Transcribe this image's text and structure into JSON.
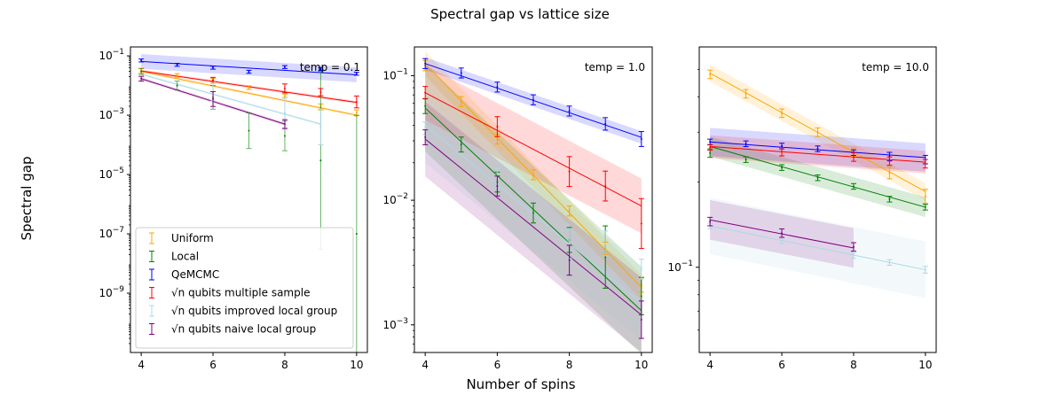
{
  "figure": {
    "title": "Spectral gap vs lattice size",
    "ylabel": "Spectral gap",
    "xlabel": "Number of spins"
  },
  "series_styles": [
    {
      "name": "Uniform",
      "color": "#ffa500"
    },
    {
      "name": "Local",
      "color": "#008000"
    },
    {
      "name": "QeMCMC",
      "color": "#0000ff"
    },
    {
      "name": "√n qubits multiple sample",
      "color": "#ff0000"
    },
    {
      "name": "√n qubits improved local group",
      "color": "#add8e6"
    },
    {
      "name": "√n qubits naive local group",
      "color": "#800080"
    }
  ],
  "chart_data": [
    {
      "type": "line",
      "title": "temp = 0.1",
      "xlabel": "",
      "ylabel": "",
      "yscale": "log",
      "xlim": [
        3.7,
        10.3
      ],
      "ylim": [
        1e-11,
        0.2
      ],
      "xticks": [
        4,
        6,
        8,
        10
      ],
      "yticks": [
        1e-09,
        1e-07,
        1e-05,
        0.001,
        0.1
      ],
      "ytick_labels": [
        "10^-9",
        "10^-7",
        "10^-5",
        "10^-3",
        "10^-1"
      ],
      "legend": "lower-left",
      "series": [
        {
          "name": "Uniform",
          "x": [
            4,
            5,
            6,
            7,
            8,
            9,
            10
          ],
          "y": [
            0.031,
            0.022,
            0.015,
            0.0085,
            0.0045,
            0.0019,
            0.0012
          ],
          "err": [
            0.08,
            0.06,
            0.06,
            0.06,
            0.06,
            0.1,
            0.1
          ],
          "fit": [
            [
              4,
              0.03
            ],
            [
              10,
              0.001
            ]
          ],
          "band": 0.05
        },
        {
          "name": "Local",
          "x": [
            4,
            5,
            6,
            7,
            8,
            9,
            10
          ],
          "y": [
            0.03,
            0.01,
            0.004,
            0.0003,
            0.0002,
            3e-05,
            1e-07
          ],
          "err": [
            0.1,
            0.15,
            0.4,
            0.6,
            0.5,
            3,
            4
          ],
          "fit": null,
          "band": null
        },
        {
          "name": "QeMCMC",
          "x": [
            4,
            5,
            6,
            7,
            8,
            9,
            10
          ],
          "y": [
            0.07,
            0.05,
            0.04,
            0.029,
            0.042,
            0.036,
            0.025
          ],
          "err": [
            0.05,
            0.05,
            0.05,
            0.05,
            0.05,
            0.05,
            0.05
          ],
          "fit": [
            [
              4,
              0.065
            ],
            [
              10,
              0.023
            ]
          ],
          "band": 0.25
        },
        {
          "name": "√n qubits multiple sample",
          "x": [
            6,
            8,
            9,
            10
          ],
          "y": [
            0.015,
            0.008,
            0.006,
            0.0028
          ],
          "err": [
            0.1,
            0.15,
            0.12,
            0.2
          ],
          "fit": [
            [
              4,
              0.031
            ],
            [
              10,
              0.0027
            ]
          ],
          "band": 0.05
        },
        {
          "name": "√n qubits improved local group",
          "x": [
            6,
            8,
            9
          ],
          "y": [
            0.006,
            0.0012,
            0.0004
          ],
          "err": [
            0.3,
            0.5,
            0.6
          ],
          "fit": [
            [
              4,
              0.024
            ],
            [
              9,
              0.0005
            ]
          ],
          "band": 0.05
        },
        {
          "name": "√n qubits naive local group",
          "x": [
            4,
            6,
            8
          ],
          "y": [
            0.017,
            0.0035,
            0.0005
          ],
          "err": [
            0.08,
            0.25,
            0.15
          ],
          "fit": [
            [
              4,
              0.017
            ],
            [
              8,
              0.0005
            ]
          ],
          "band": 0.05
        }
      ]
    },
    {
      "type": "line",
      "title": "temp = 1.0",
      "xlabel": "Number of spins",
      "ylabel": "",
      "yscale": "log",
      "xlim": [
        3.7,
        10.3
      ],
      "ylim": [
        0.0006,
        0.17
      ],
      "xticks": [
        4,
        6,
        8,
        10
      ],
      "yticks": [
        0.001,
        0.01,
        0.1
      ],
      "ytick_labels": [
        "10^-3",
        "10^-2",
        "10^-1"
      ],
      "legend": "none",
      "series": [
        {
          "name": "Uniform",
          "x": [
            4,
            5,
            6,
            7,
            8,
            9,
            10
          ],
          "y": [
            0.12,
            0.062,
            0.031,
            0.016,
            0.0082,
            0.0041,
            0.0021
          ],
          "err": [
            0.04,
            0.04,
            0.04,
            0.04,
            0.04,
            0.05,
            0.06
          ],
          "fit": [
            [
              4,
              0.125
            ],
            [
              10,
              0.002
            ]
          ],
          "band": 0.1
        },
        {
          "name": "Local",
          "x": [
            4,
            5,
            6,
            7,
            8,
            9,
            10
          ],
          "y": [
            0.057,
            0.028,
            0.014,
            0.0079,
            0.0048,
            0.0035,
            0.0017
          ],
          "err": [
            0.06,
            0.06,
            0.08,
            0.08,
            0.1,
            0.25,
            0.15
          ],
          "fit": [
            [
              4,
              0.055
            ],
            [
              10,
              0.0013
            ]
          ],
          "band": 0.35
        },
        {
          "name": "QeMCMC",
          "x": [
            4,
            5,
            6,
            7,
            8,
            9,
            10
          ],
          "y": [
            0.125,
            0.105,
            0.081,
            0.064,
            0.052,
            0.041,
            0.031
          ],
          "err": [
            0.04,
            0.04,
            0.04,
            0.04,
            0.04,
            0.05,
            0.06
          ],
          "fit": [
            [
              4,
              0.125
            ],
            [
              10,
              0.032
            ]
          ],
          "band": 0.05
        },
        {
          "name": "√n qubits multiple sample",
          "x": [
            4,
            6,
            8,
            9,
            10
          ],
          "y": [
            0.073,
            0.039,
            0.017,
            0.013,
            0.0065
          ],
          "err": [
            0.05,
            0.08,
            0.12,
            0.12,
            0.2
          ],
          "fit": [
            [
              4,
              0.073
            ],
            [
              10,
              0.009
            ]
          ],
          "band": 0.22
        },
        {
          "name": "√n qubits improved local group",
          "x": [
            4,
            6,
            8,
            9,
            10
          ],
          "y": [
            0.038,
            0.015,
            0.0045,
            0.0045,
            0.0028
          ],
          "err": [
            0.05,
            0.08,
            0.12,
            0.1,
            0.08
          ],
          "fit": [
            [
              4,
              0.04
            ],
            [
              10,
              0.0015
            ]
          ],
          "band": 0.3
        },
        {
          "name": "√n qubits naive local group",
          "x": [
            4,
            6,
            8,
            10
          ],
          "y": [
            0.032,
            0.013,
            0.0033,
            0.0011
          ],
          "err": [
            0.06,
            0.08,
            0.12,
            0.15
          ],
          "fit": [
            [
              4,
              0.031
            ],
            [
              10,
              0.0012
            ]
          ],
          "band": 0.3
        }
      ]
    },
    {
      "type": "line",
      "title": "temp = 10.0",
      "xlabel": "",
      "ylabel": "",
      "yscale": "log",
      "xlim": [
        3.7,
        10.3
      ],
      "ylim": [
        0.05,
        0.6
      ],
      "xticks": [
        4,
        6,
        8,
        10
      ],
      "yticks": [
        0.1
      ],
      "ytick_labels": [
        "10^-1"
      ],
      "legend": "none",
      "series": [
        {
          "name": "Uniform",
          "x": [
            4,
            5,
            6,
            7,
            8,
            9,
            10
          ],
          "y": [
            0.48,
            0.41,
            0.35,
            0.3,
            0.255,
            0.215,
            0.178
          ],
          "err": [
            0.015,
            0.015,
            0.015,
            0.015,
            0.015,
            0.02,
            0.025
          ],
          "fit": [
            [
              4,
              0.485
            ],
            [
              10,
              0.185
            ]
          ],
          "band": 0.03
        },
        {
          "name": "Local",
          "x": [
            4,
            5,
            6,
            7,
            8,
            9,
            10
          ],
          "y": [
            0.253,
            0.24,
            0.225,
            0.207,
            0.193,
            0.174,
            0.163
          ],
          "err": [
            0.015,
            0.01,
            0.01,
            0.01,
            0.01,
            0.01,
            0.01
          ],
          "fit": [
            [
              4,
              0.267
            ],
            [
              10,
              0.163
            ]
          ],
          "band": 0.035
        },
        {
          "name": "QeMCMC",
          "x": [
            4,
            5,
            6,
            7,
            8,
            9,
            10
          ],
          "y": [
            0.277,
            0.273,
            0.268,
            0.262,
            0.254,
            0.246,
            0.24
          ],
          "err": [
            0.01,
            0.01,
            0.01,
            0.01,
            0.01,
            0.015,
            0.015
          ],
          "fit": [
            [
              4,
              0.277
            ],
            [
              10,
              0.244
            ]
          ],
          "band": 0.05
        },
        {
          "name": "√n qubits multiple sample",
          "x": [
            4,
            6,
            8,
            9,
            10
          ],
          "y": [
            0.265,
            0.256,
            0.245,
            0.237,
            0.232
          ],
          "err": [
            0.01,
            0.015,
            0.015,
            0.015,
            0.015
          ],
          "fit": [
            [
              4,
              0.267
            ],
            [
              10,
              0.235
            ]
          ],
          "band": 0.04
        },
        {
          "name": "√n qubits improved local group",
          "x": [
            4,
            6,
            8,
            9,
            10
          ],
          "y": [
            0.14,
            0.124,
            0.11,
            0.104,
            0.098
          ],
          "err": [
            0.01,
            0.01,
            0.01,
            0.01,
            0.012
          ],
          "fit": [
            [
              4,
              0.14
            ],
            [
              10,
              0.098
            ]
          ],
          "band": 0.1
        },
        {
          "name": "√n qubits naive local group",
          "x": [
            4,
            6,
            8
          ],
          "y": [
            0.145,
            0.132,
            0.118
          ],
          "err": [
            0.015,
            0.015,
            0.015
          ],
          "fit": [
            [
              4,
              0.147
            ],
            [
              8,
              0.117
            ]
          ],
          "band": 0.07
        }
      ]
    }
  ]
}
